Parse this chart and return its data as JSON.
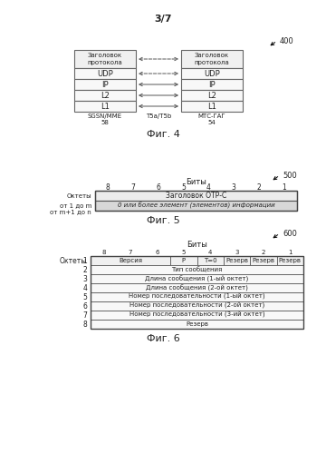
{
  "page_label": "3/7",
  "fig4_label": "Фиг. 4",
  "fig5_label": "Фиг. 5",
  "fig6_label": "Фиг. 6",
  "ref400": "400",
  "ref500": "500",
  "ref600": "600",
  "fig4": {
    "left_box_title": "Заголовок\nпротокола",
    "left_label1": "SGSN/MME",
    "left_label2": "58",
    "right_box_title": "Заголовок\nпротокола",
    "right_label1": "МТС-ГАГ",
    "right_label2": "54",
    "center_label": "Т5а/Т5b",
    "layers": [
      "UDP",
      "IP",
      "L2",
      "L1"
    ]
  },
  "fig5": {
    "header": "Биты",
    "bit_labels": [
      "8",
      "7",
      "6",
      "5",
      "4",
      "3",
      "2",
      "1"
    ],
    "left_label1": "Октеты",
    "left_label2": "от 1 до m",
    "left_label3": "от m+1 до n",
    "row1": "Заголовок ОТР-С",
    "row2": "0 или более элемент (элементов) информации"
  },
  "fig6": {
    "header": "Биты",
    "bit_labels": [
      "8",
      "7",
      "6",
      "5",
      "4",
      "3",
      "2",
      "1"
    ],
    "left_header": "Октеты",
    "octet_numbers": [
      "1",
      "2",
      "3",
      "4",
      "5",
      "6",
      "7",
      "8"
    ],
    "row1_cells": [
      {
        "text": "Версия",
        "span": 3
      },
      {
        "text": "P",
        "span": 1
      },
      {
        "text": "T=0",
        "span": 1
      },
      {
        "text": "Резерв",
        "span": 1
      },
      {
        "text": "Резерв",
        "span": 1
      },
      {
        "text": "Резерв",
        "span": 1
      }
    ],
    "rows": [
      "Тип сообщения",
      "Длина сообщения (1-ый октет)",
      "Длина сообщения (2-ой октет)",
      "Номер последовательности (1-ый октет)",
      "Номер последовательности (2-ой октет)",
      "Номер последовательности (3-ий октет)",
      "Резерв"
    ]
  },
  "text_color": "#222222",
  "font_size": 5.5
}
